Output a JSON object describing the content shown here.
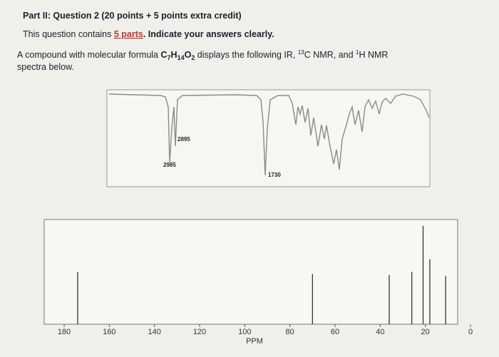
{
  "header": {
    "title": "Part II: Question 2 (20 points + 5 points extra credit)",
    "line2": {
      "before": "This question contains ",
      "link": "5 parts",
      "after": ". Indicate your answers clearly."
    },
    "line3": {
      "t1": "A compound with molecular formula ",
      "f1": "C",
      "s1": "7",
      "f2": "H",
      "s2": "14",
      "f3": "O",
      "s3": "2",
      "t2": " displays the following IR, ",
      "sup1": "13",
      "t3": "C NMR, and ",
      "sup2": "1",
      "t4": "H NMR",
      "t5": "spectra below."
    }
  },
  "ir": {
    "labels": [
      "2985",
      "2895",
      "1730"
    ]
  },
  "nmr": {
    "xlim": [
      180,
      0
    ],
    "ticks": [
      180,
      160,
      140,
      120,
      100,
      80,
      60,
      40,
      20,
      0
    ],
    "axis_label": "PPM",
    "peaks": [
      174,
      70,
      36,
      26,
      21,
      18,
      11
    ],
    "intensities": [
      50,
      48,
      47,
      50,
      94,
      62,
      46
    ]
  }
}
